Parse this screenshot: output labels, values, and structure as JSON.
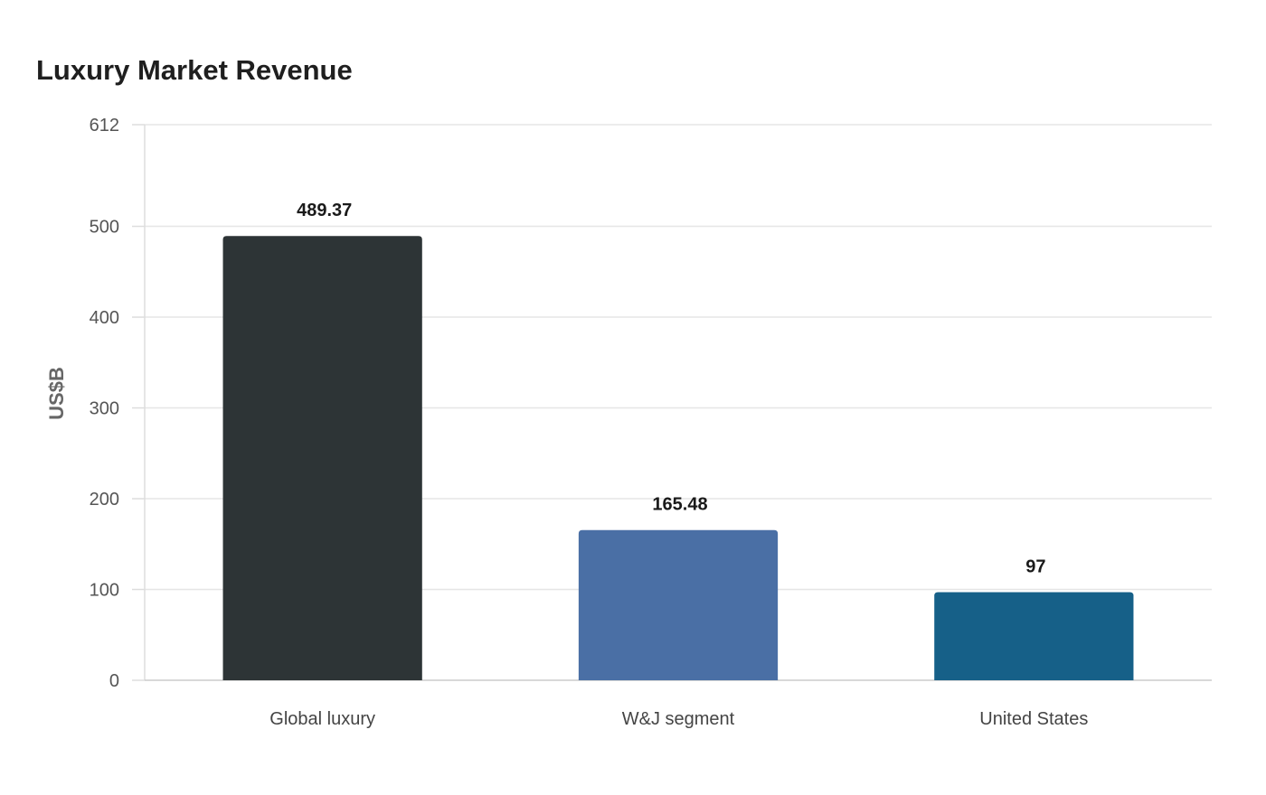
{
  "chart_data": {
    "type": "bar",
    "title": "Luxury Market Revenue",
    "xlabel": "",
    "ylabel": "US$B",
    "categories": [
      "Global luxury",
      "W&J segment",
      "United States"
    ],
    "values": [
      489.37,
      165.48,
      97
    ],
    "value_labels": [
      "489.37",
      "165.48",
      "97"
    ],
    "colors": [
      "#2d3436",
      "#4a6fa5",
      "#166088"
    ],
    "ylim": [
      0,
      612
    ],
    "yticks": [
      0,
      100,
      200,
      300,
      400,
      500,
      612
    ],
    "grid": true,
    "legend": "none"
  }
}
